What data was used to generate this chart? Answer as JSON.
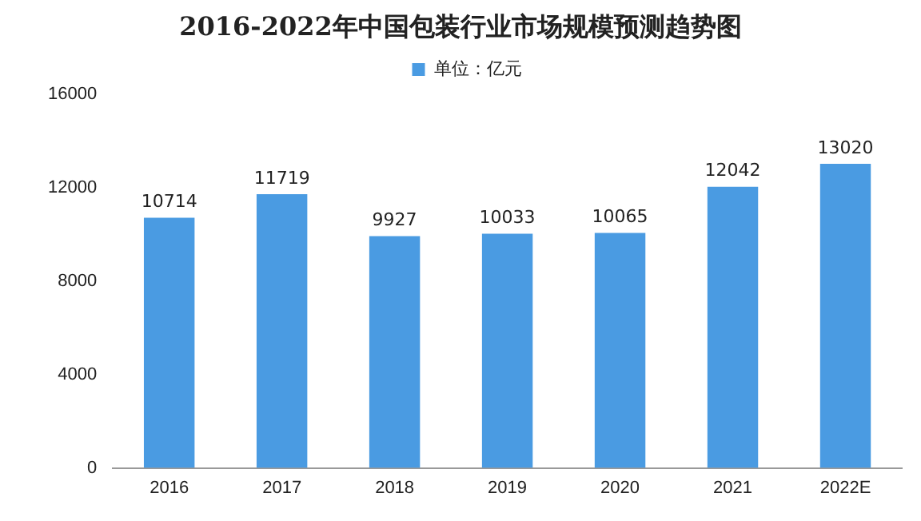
{
  "chart_data": {
    "type": "bar",
    "title": "2016-2022年中国包装行业市场规模预测趋势图",
    "categories": [
      "2016",
      "2017",
      "2018",
      "2019",
      "2020",
      "2021",
      "2022E"
    ],
    "series": [
      {
        "name": "单位：亿元",
        "color": "#4a9be2",
        "values": [
          10714,
          11719,
          9927,
          10033,
          10065,
          12042,
          13020
        ]
      }
    ],
    "ylim": [
      0,
      16000
    ],
    "yticks": [
      0,
      4000,
      8000,
      12000,
      16000
    ],
    "grid": false,
    "legend": "top",
    "data_labels": true
  }
}
